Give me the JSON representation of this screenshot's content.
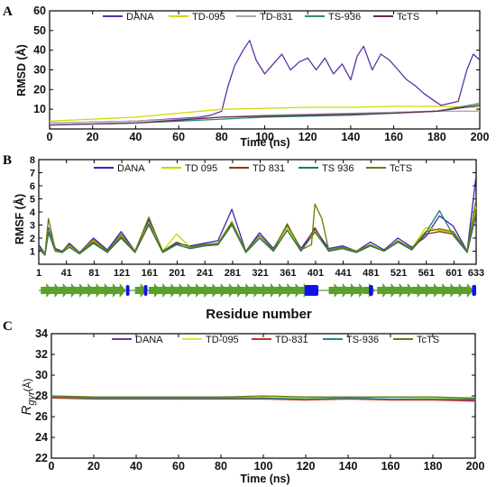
{
  "chart_data": [
    {
      "panel": "A",
      "type": "line",
      "xlabel": "Time (ns)",
      "ylabel": "RMSD (Å)",
      "xlim": [
        0,
        200
      ],
      "ylim": [
        0,
        60
      ],
      "xticks": [
        0,
        20,
        40,
        60,
        80,
        100,
        120,
        140,
        160,
        180,
        200
      ],
      "yticks": [
        10,
        20,
        30,
        40,
        50,
        60
      ],
      "legend_position": "top",
      "series": [
        {
          "name": "DANA",
          "color": "#5b2fa8",
          "x": [
            0,
            20,
            40,
            55,
            70,
            75,
            80,
            83,
            86,
            90,
            93,
            96,
            100,
            104,
            108,
            112,
            116,
            120,
            124,
            128,
            132,
            136,
            140,
            143,
            146,
            150,
            154,
            158,
            162,
            166,
            170,
            174,
            178,
            182,
            186,
            190,
            194,
            197,
            200
          ],
          "y": [
            3,
            3.5,
            4,
            5,
            6,
            7,
            9,
            22,
            32,
            40,
            45,
            35,
            28,
            33,
            38,
            30,
            34,
            36,
            30,
            36,
            28,
            33,
            25,
            37,
            42,
            30,
            38,
            35,
            30,
            25,
            22,
            18,
            15,
            12,
            13,
            14,
            30,
            38,
            35
          ]
        },
        {
          "name": "TD-095",
          "color": "#d4d900",
          "x": [
            0,
            20,
            40,
            60,
            80,
            100,
            120,
            140,
            160,
            180,
            200
          ],
          "y": [
            4,
            5,
            6,
            8,
            10,
            10.5,
            11,
            11,
            11.5,
            11.5,
            11
          ]
        },
        {
          "name": "TD-831",
          "color": "#a8a8b0",
          "x": [
            0,
            20,
            40,
            60,
            80,
            100,
            120,
            140,
            160,
            180,
            200
          ],
          "y": [
            3,
            3.5,
            4,
            5,
            6,
            7,
            7.5,
            8,
            8.5,
            9,
            9
          ]
        },
        {
          "name": "TS-936",
          "color": "#2e8b70",
          "x": [
            0,
            20,
            40,
            60,
            80,
            100,
            120,
            140,
            160,
            180,
            200
          ],
          "y": [
            2,
            2.5,
            3,
            4,
            5,
            6,
            6.5,
            7,
            8,
            9,
            13
          ]
        },
        {
          "name": "TcTS",
          "color": "#6b2a55",
          "x": [
            0,
            20,
            40,
            60,
            80,
            100,
            120,
            140,
            160,
            180,
            200
          ],
          "y": [
            2,
            2.5,
            3,
            4.5,
            6,
            6.5,
            7,
            7.5,
            8,
            9,
            12
          ]
        }
      ]
    },
    {
      "panel": "B",
      "type": "line",
      "xlabel": "Residue number",
      "ylabel": "RMSF (Å)",
      "xlim": [
        1,
        633
      ],
      "ylim": [
        0,
        8
      ],
      "xticks": [
        1,
        41,
        81,
        121,
        161,
        201,
        241,
        281,
        321,
        361,
        401,
        441,
        481,
        521,
        561,
        601,
        633
      ],
      "yticks": [
        1,
        2,
        3,
        4,
        5,
        6,
        7,
        8
      ],
      "legend_position": "top",
      "series": [
        {
          "name": "DANA",
          "color": "#3a22b8",
          "x": [
            1,
            10,
            15,
            25,
            35,
            45,
            60,
            80,
            100,
            120,
            140,
            160,
            180,
            200,
            220,
            240,
            260,
            280,
            300,
            320,
            340,
            360,
            380,
            400,
            420,
            440,
            460,
            480,
            500,
            520,
            540,
            560,
            580,
            600,
            620,
            633
          ],
          "y": [
            1.5,
            0.8,
            2.8,
            1.2,
            1.0,
            1.6,
            0.9,
            2.0,
            1.1,
            2.5,
            1.0,
            3.4,
            1.0,
            1.6,
            1.4,
            1.6,
            1.8,
            4.2,
            1.0,
            2.4,
            1.2,
            3.0,
            1.2,
            2.7,
            1.2,
            1.4,
            1.0,
            1.7,
            1.1,
            2.0,
            1.3,
            2.1,
            3.7,
            2.9,
            1.0,
            6.8
          ]
        },
        {
          "name": "TD 095",
          "color": "#c8d400",
          "x": [
            1,
            10,
            15,
            25,
            35,
            45,
            60,
            80,
            100,
            120,
            140,
            160,
            180,
            200,
            220,
            240,
            260,
            280,
            300,
            320,
            340,
            360,
            380,
            400,
            420,
            440,
            460,
            480,
            500,
            520,
            540,
            560,
            580,
            600,
            620,
            633
          ],
          "y": [
            1.3,
            0.8,
            2.6,
            1.1,
            0.9,
            1.4,
            0.8,
            1.8,
            1.0,
            2.2,
            1.0,
            3.2,
            1.0,
            2.3,
            1.3,
            1.5,
            1.6,
            3.3,
            1.0,
            2.2,
            1.1,
            2.8,
            1.1,
            2.4,
            1.1,
            1.3,
            1.0,
            1.5,
            1.0,
            1.8,
            1.2,
            2.8,
            2.6,
            2.4,
            1.0,
            4.5
          ]
        },
        {
          "name": "TD 831",
          "color": "#8b3a1a",
          "x": [
            1,
            10,
            15,
            25,
            35,
            45,
            60,
            80,
            100,
            120,
            140,
            160,
            180,
            200,
            220,
            240,
            260,
            280,
            300,
            320,
            340,
            360,
            380,
            400,
            420,
            440,
            460,
            480,
            500,
            520,
            540,
            560,
            580,
            600,
            620,
            633
          ],
          "y": [
            1.2,
            0.7,
            2.4,
            1.0,
            0.9,
            1.3,
            0.8,
            1.7,
            0.9,
            2.0,
            0.9,
            3.0,
            0.9,
            1.5,
            1.2,
            1.4,
            1.5,
            3.1,
            0.9,
            2.0,
            1.0,
            2.6,
            1.0,
            2.8,
            1.0,
            1.2,
            0.9,
            1.4,
            1.0,
            1.7,
            1.1,
            2.3,
            2.5,
            2.3,
            0.9,
            4.0
          ]
        },
        {
          "name": "TS 936",
          "color": "#1f7a6a",
          "x": [
            1,
            10,
            15,
            25,
            35,
            45,
            60,
            80,
            100,
            120,
            140,
            160,
            180,
            200,
            220,
            240,
            260,
            280,
            300,
            320,
            340,
            360,
            380,
            400,
            420,
            440,
            460,
            480,
            500,
            520,
            540,
            560,
            580,
            600,
            620,
            633
          ],
          "y": [
            1.2,
            0.7,
            2.5,
            1.0,
            0.9,
            1.3,
            0.8,
            1.6,
            0.9,
            2.1,
            0.9,
            3.1,
            0.9,
            1.5,
            1.2,
            1.4,
            1.5,
            3.0,
            0.9,
            2.0,
            1.0,
            2.6,
            1.0,
            2.5,
            1.0,
            1.2,
            0.9,
            1.4,
            1.0,
            1.7,
            1.1,
            2.4,
            4.1,
            2.2,
            0.9,
            3.8
          ]
        },
        {
          "name": "TcTS",
          "color": "#6b7a00",
          "x": [
            1,
            10,
            15,
            25,
            35,
            45,
            60,
            80,
            100,
            120,
            140,
            160,
            180,
            200,
            220,
            240,
            260,
            280,
            300,
            320,
            340,
            360,
            380,
            395,
            400,
            410,
            420,
            440,
            460,
            480,
            500,
            520,
            540,
            560,
            580,
            600,
            620,
            633
          ],
          "y": [
            1.3,
            0.8,
            3.5,
            1.1,
            1.0,
            1.5,
            0.9,
            1.9,
            1.0,
            2.3,
            1.0,
            3.6,
            1.0,
            1.7,
            1.3,
            1.5,
            1.6,
            3.2,
            1.0,
            2.2,
            1.1,
            3.1,
            1.1,
            1.5,
            4.6,
            3.5,
            1.1,
            1.3,
            1.0,
            1.5,
            1.0,
            1.8,
            1.2,
            2.5,
            2.7,
            2.5,
            1.0,
            5.0
          ]
        }
      ]
    },
    {
      "panel": "C",
      "type": "line",
      "xlabel": "Time (ns)",
      "ylabel": "R_gyr (Å)",
      "xlim": [
        0,
        200
      ],
      "ylim": [
        22,
        34
      ],
      "xticks": [
        0,
        20,
        40,
        60,
        80,
        100,
        120,
        140,
        160,
        180,
        200
      ],
      "yticks": [
        22,
        24,
        26,
        28,
        30,
        32,
        34
      ],
      "legend_position": "top",
      "series": [
        {
          "name": "DANA",
          "color": "#6a3aa8",
          "x": [
            0,
            20,
            40,
            60,
            80,
            100,
            120,
            140,
            160,
            180,
            200
          ],
          "y": [
            27.9,
            27.8,
            27.8,
            27.7,
            27.8,
            27.8,
            27.7,
            27.8,
            27.7,
            27.7,
            27.6
          ]
        },
        {
          "name": "TD-095",
          "color": "#e2e23a",
          "x": [
            0,
            20,
            40,
            60,
            80,
            100,
            120,
            140,
            160,
            180,
            200
          ],
          "y": [
            28.0,
            27.9,
            27.9,
            27.8,
            27.9,
            27.9,
            27.8,
            27.9,
            27.9,
            27.8,
            27.8
          ]
        },
        {
          "name": "TD-831",
          "color": "#c0392b",
          "x": [
            0,
            20,
            40,
            60,
            80,
            100,
            120,
            140,
            160,
            180,
            200
          ],
          "y": [
            27.8,
            27.7,
            27.7,
            27.7,
            27.7,
            27.7,
            27.6,
            27.7,
            27.6,
            27.6,
            27.5
          ]
        },
        {
          "name": "TS-936",
          "color": "#1f8a8a",
          "x": [
            0,
            20,
            40,
            60,
            80,
            100,
            120,
            140,
            160,
            180,
            200
          ],
          "y": [
            27.9,
            27.8,
            27.8,
            27.8,
            27.8,
            27.8,
            27.7,
            27.8,
            27.7,
            27.7,
            27.7
          ]
        },
        {
          "name": "TcTS",
          "color": "#6b7a10",
          "x": [
            0,
            20,
            40,
            60,
            80,
            100,
            120,
            140,
            160,
            180,
            200
          ],
          "y": [
            28.0,
            27.9,
            27.9,
            27.9,
            27.9,
            28.0,
            27.9,
            27.9,
            27.9,
            27.9,
            27.8
          ]
        }
      ]
    }
  ],
  "labels": {
    "panel_a": "A",
    "panel_b": "B",
    "panel_c": "C",
    "rmsd_ylabel": "RMSD (Å)",
    "rmsf_ylabel": "RMSF (Å)",
    "rgyr_ylabel_main": "R",
    "rgyr_ylabel_sub": "gyr",
    "rgyr_ylabel_unit": "(Å)",
    "time_xlabel_a": "Time (ns)",
    "time_xlabel_c": "Time (ns)",
    "residue_xlabel": "Residue number"
  },
  "secondary_structure": {
    "strand_color": "#5aa02c",
    "helix_color": "#1010ee"
  }
}
